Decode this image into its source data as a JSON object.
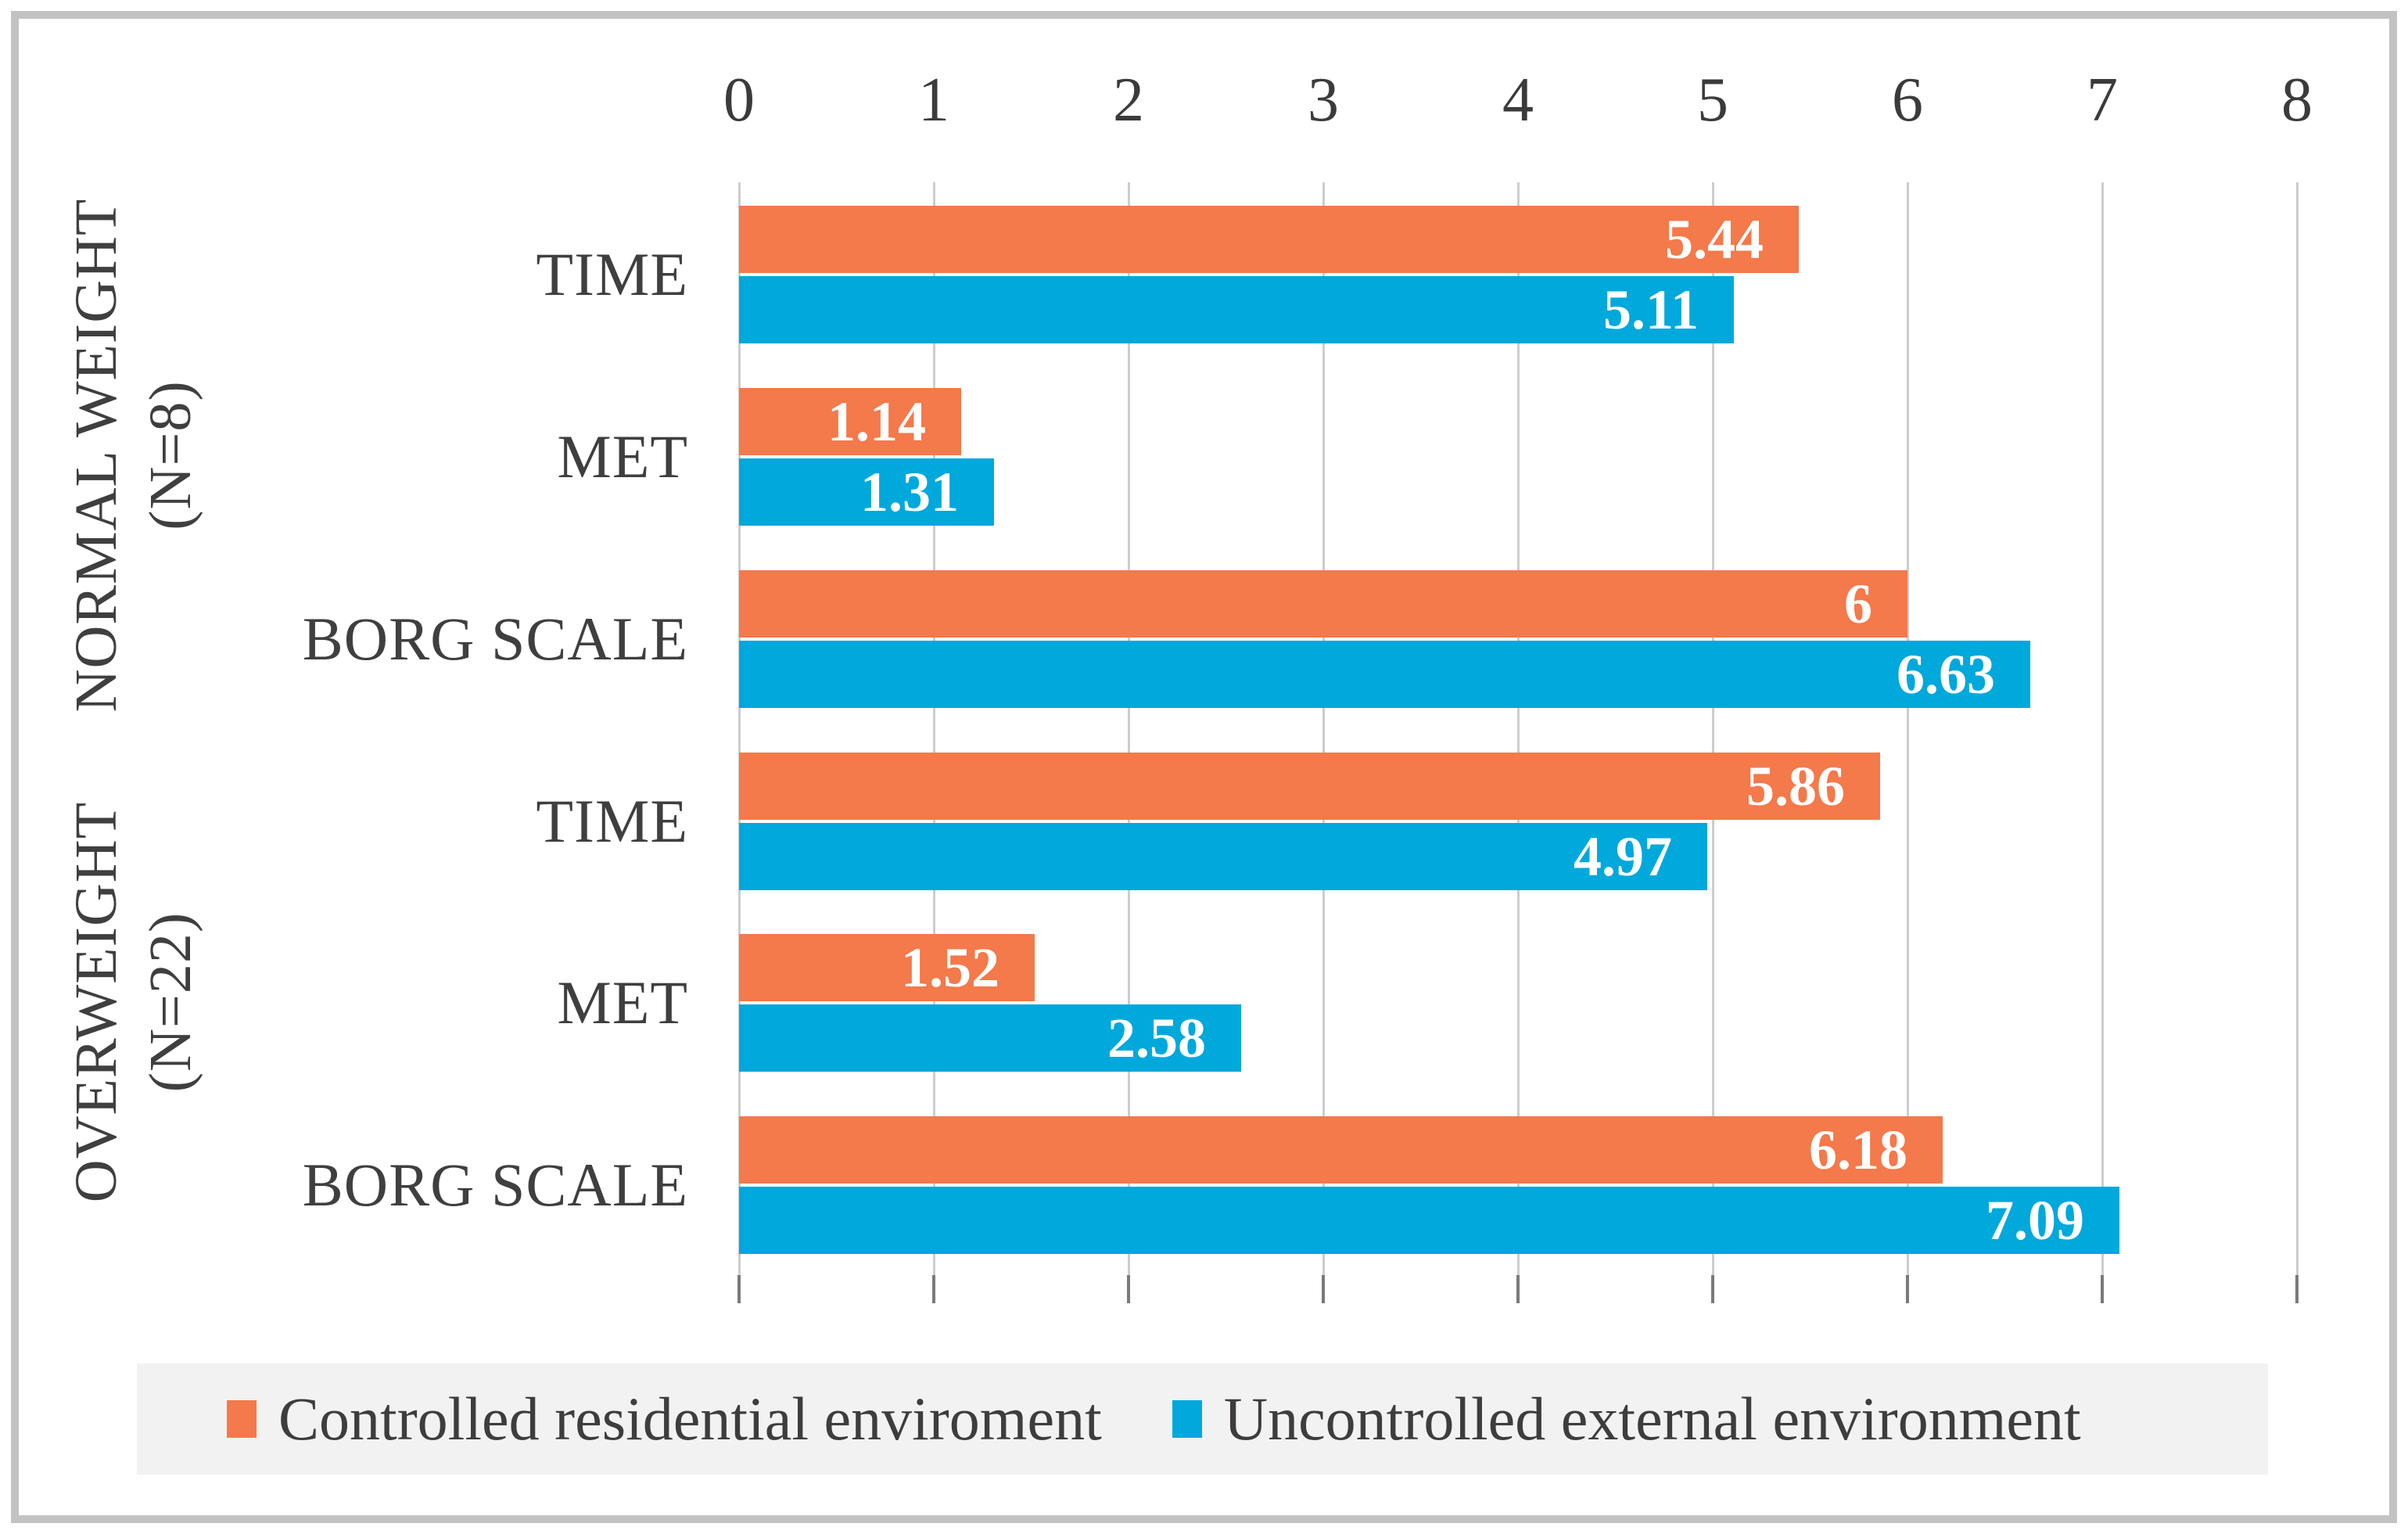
{
  "chart_data": {
    "type": "bar",
    "orientation": "horizontal",
    "title": "",
    "xlabel": "",
    "ylabel": "",
    "xlim": [
      0,
      8
    ],
    "x_ticks": [
      "0",
      "1",
      "2",
      "3",
      "4",
      "5",
      "6",
      "7",
      "8"
    ],
    "grid": true,
    "legend_position": "bottom",
    "series": [
      {
        "name": "Controlled residential enviroment",
        "color": "#F4794B"
      },
      {
        "name": "Uncontrolled external environment",
        "color": "#00A8DB"
      }
    ],
    "groups": [
      {
        "label": "NORMAL WEIGHT",
        "sublabel": "(N=8)",
        "rows": [
          {
            "category": "TIME",
            "values": [
              5.44,
              5.11
            ],
            "value_labels": [
              "5.44",
              "5.11"
            ]
          },
          {
            "category": "MET",
            "values": [
              1.14,
              1.31
            ],
            "value_labels": [
              "1.14",
              "1.31"
            ]
          },
          {
            "category": "BORG SCALE",
            "values": [
              6.0,
              6.63
            ],
            "value_labels": [
              "6",
              "6.63"
            ]
          }
        ]
      },
      {
        "label": "OVERWEIGHT",
        "sublabel": "(N=22)",
        "rows": [
          {
            "category": "TIME",
            "values": [
              5.86,
              4.97
            ],
            "value_labels": [
              "5.86",
              "4.97"
            ]
          },
          {
            "category": "MET",
            "values": [
              1.52,
              2.58
            ],
            "value_labels": [
              "1.52",
              "2.58"
            ]
          },
          {
            "category": "BORG SCALE",
            "values": [
              6.18,
              7.09
            ],
            "value_labels": [
              "6.18",
              "7.09"
            ]
          }
        ]
      }
    ]
  },
  "colors": {
    "gridline": "#cdcdcd",
    "tick_mark": "#7a7a7a",
    "axis_text": "#3b3b3b",
    "label_text": "#3f3f3f",
    "value_text": "#ffffff",
    "legend_band": "#f2f2f2",
    "frame_border": "#c2c2c2",
    "background": "#ffffff"
  },
  "legend": {
    "item1": "Controlled residential enviroment",
    "item2": "Uncontrolled external environment"
  }
}
